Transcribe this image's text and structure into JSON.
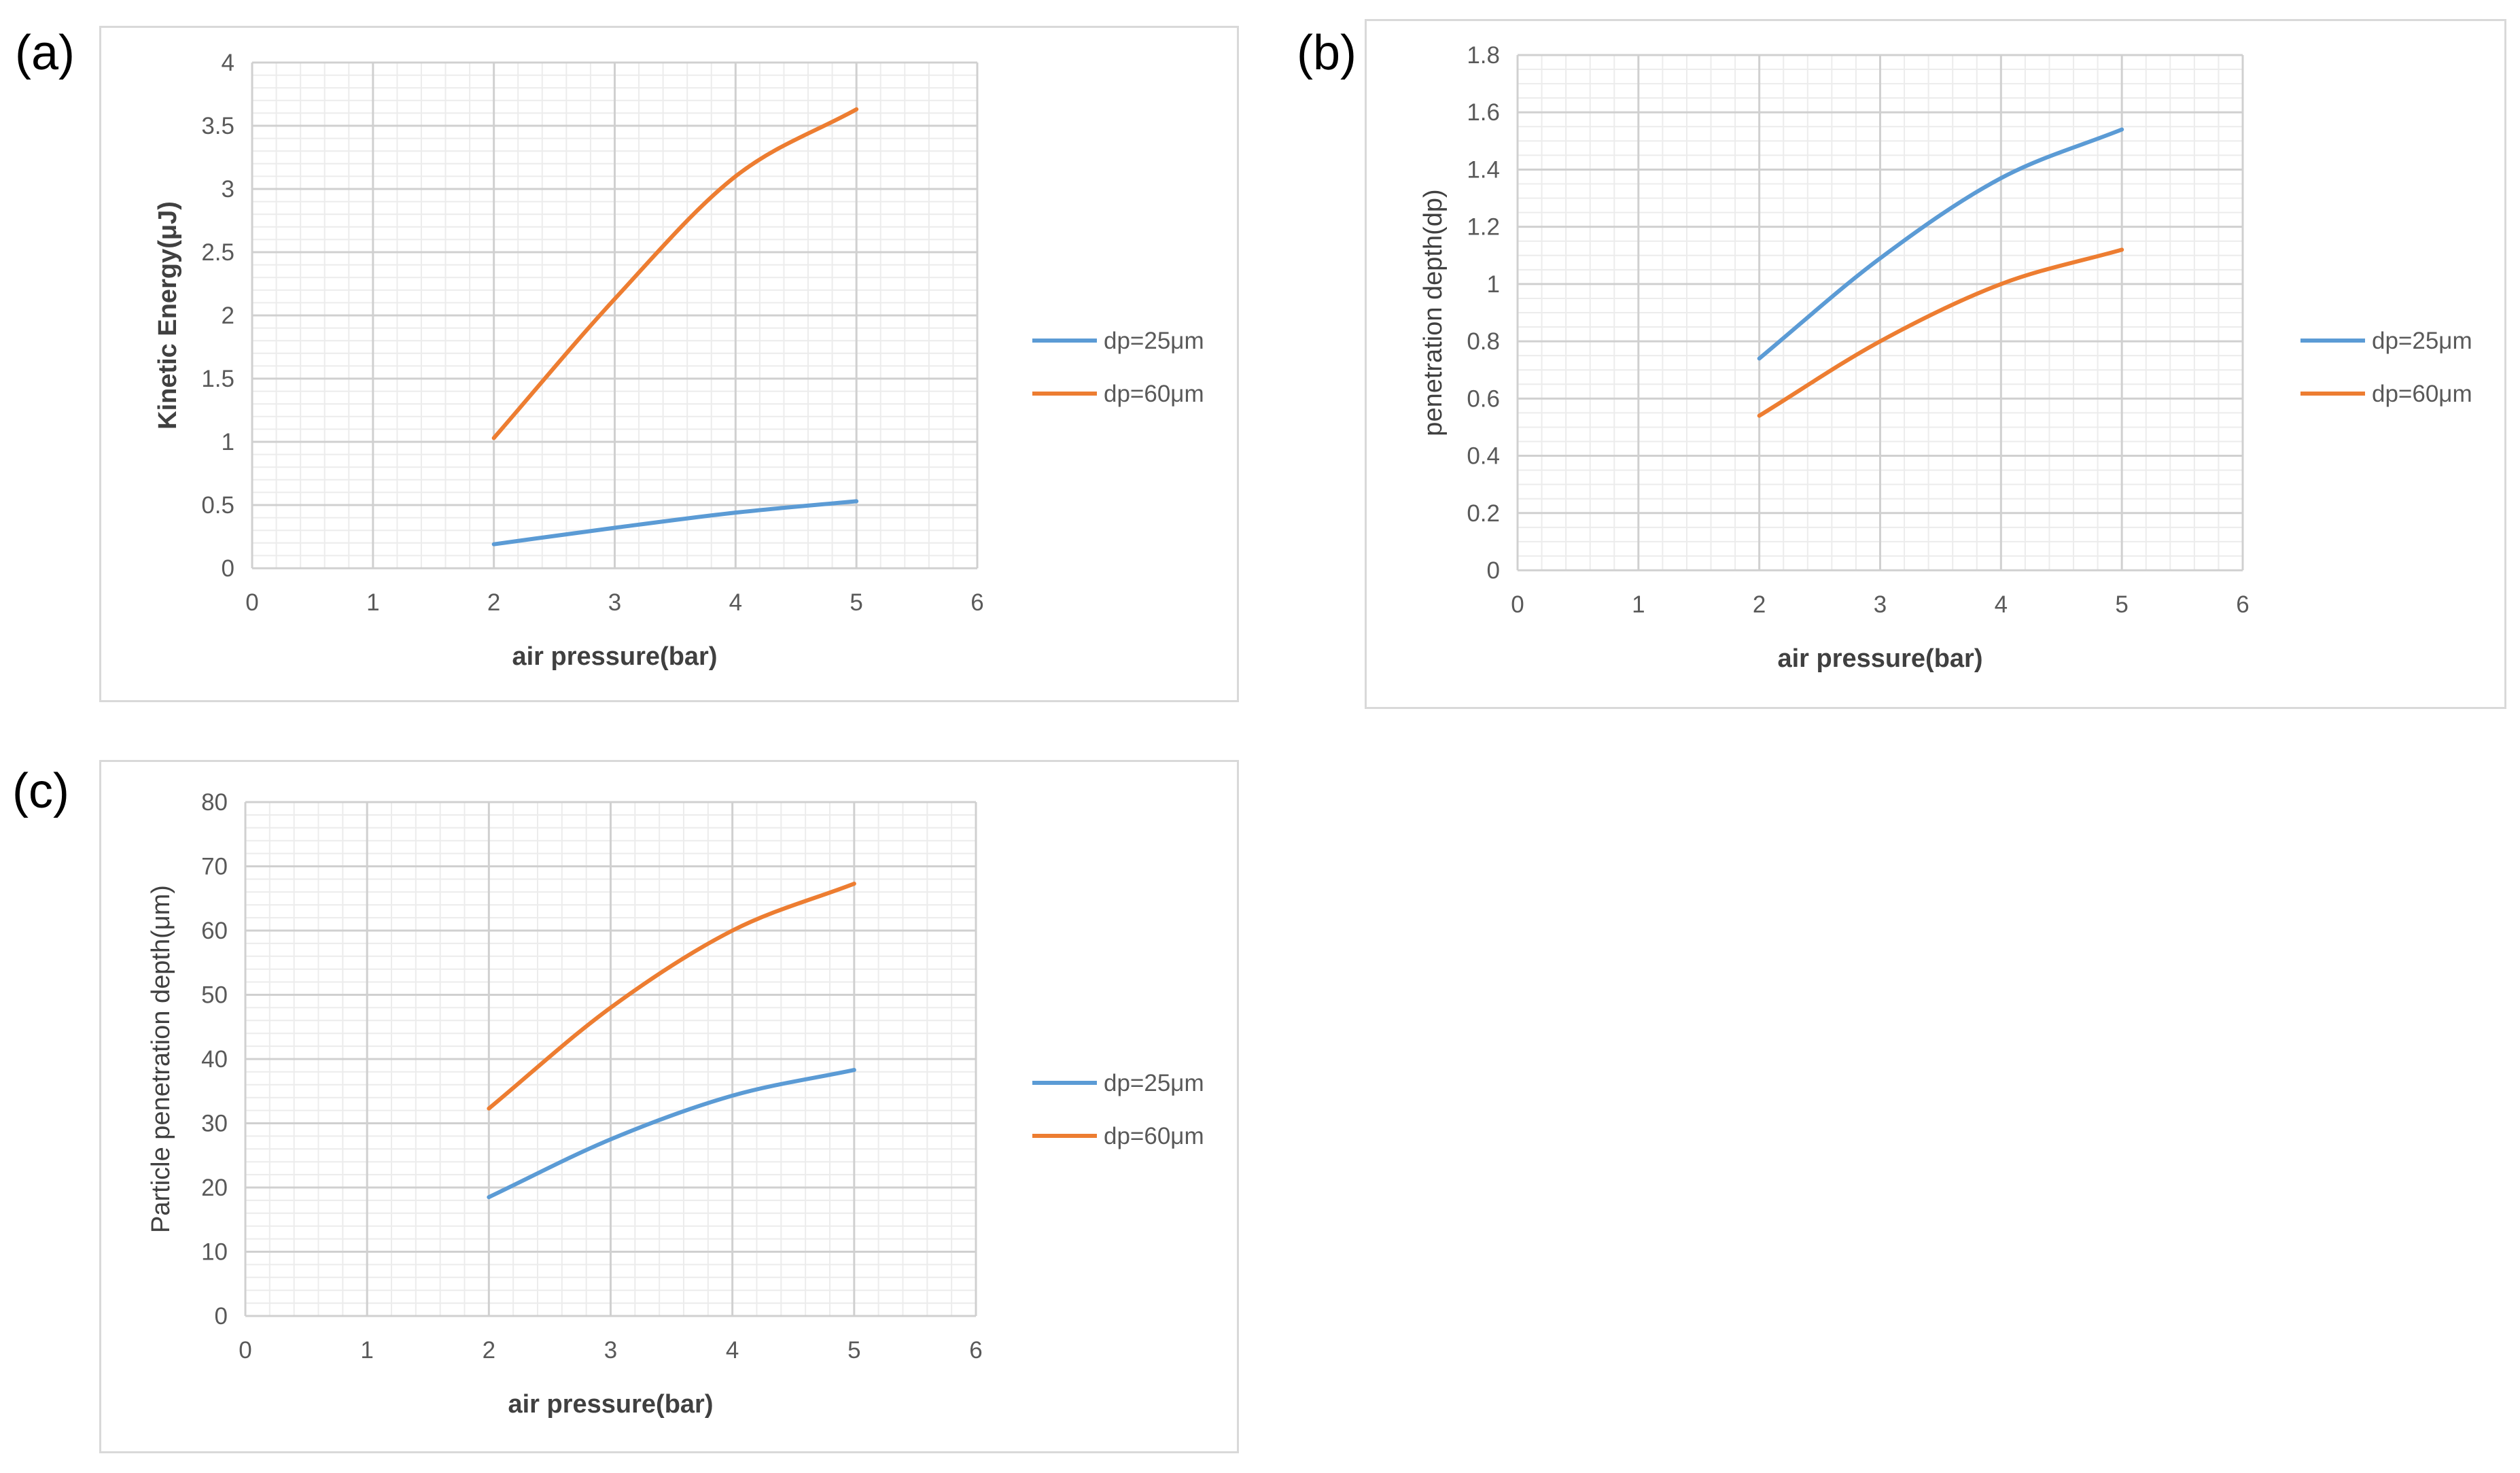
{
  "chart_data": [
    {
      "panel_label": "(a)",
      "type": "line",
      "xlabel": "air pressure(bar)",
      "ylabel": "Kinetic Energy(μJ)",
      "xlim": [
        0,
        6
      ],
      "ylim": [
        0,
        4
      ],
      "x_ticks": [
        0,
        1,
        2,
        3,
        4,
        5,
        6
      ],
      "y_ticks": [
        0,
        0.5,
        1,
        1.5,
        2,
        2.5,
        3,
        3.5,
        4
      ],
      "minor_y": 0.1,
      "minor_x": 0.2,
      "legend_position": "right",
      "series": [
        {
          "name": "dp=25μm",
          "color": "#5b9bd5",
          "x": [
            2,
            3,
            4,
            5
          ],
          "values": [
            0.19,
            0.32,
            0.44,
            0.53
          ]
        },
        {
          "name": "dp=60μm",
          "color": "#ed7d31",
          "x": [
            2,
            3,
            4,
            5
          ],
          "values": [
            1.03,
            2.13,
            3.1,
            3.63
          ]
        }
      ]
    },
    {
      "panel_label": "(b)",
      "type": "line",
      "xlabel": "air pressure(bar)",
      "ylabel": "penetration depth(dp)",
      "xlim": [
        0,
        6
      ],
      "ylim": [
        0,
        1.8
      ],
      "x_ticks": [
        0,
        1,
        2,
        3,
        4,
        5,
        6
      ],
      "y_ticks": [
        0,
        0.2,
        0.4,
        0.6,
        0.8,
        1,
        1.2,
        1.4,
        1.6,
        1.8
      ],
      "minor_y": 0.05,
      "minor_x": 0.2,
      "legend_position": "right",
      "series": [
        {
          "name": "dp=25μm",
          "color": "#5b9bd5",
          "x": [
            2,
            3,
            4,
            5
          ],
          "values": [
            0.74,
            1.09,
            1.37,
            1.54
          ]
        },
        {
          "name": "dp=60μm",
          "color": "#ed7d31",
          "x": [
            2,
            3,
            4,
            5
          ],
          "values": [
            0.54,
            0.8,
            1.0,
            1.12
          ]
        }
      ]
    },
    {
      "panel_label": "(c)",
      "type": "line",
      "xlabel": "air pressure(bar)",
      "ylabel": "Particle penetration depth(μm)",
      "xlim": [
        0,
        6
      ],
      "ylim": [
        0,
        80
      ],
      "x_ticks": [
        0,
        1,
        2,
        3,
        4,
        5,
        6
      ],
      "y_ticks": [
        0,
        10,
        20,
        30,
        40,
        50,
        60,
        70,
        80
      ],
      "minor_y": 2,
      "minor_x": 0.2,
      "legend_position": "right",
      "series": [
        {
          "name": "dp=25μm",
          "color": "#5b9bd5",
          "x": [
            2,
            3,
            4,
            5
          ],
          "values": [
            18.5,
            27.5,
            34.3,
            38.3
          ]
        },
        {
          "name": "dp=60μm",
          "color": "#ed7d31",
          "x": [
            2,
            3,
            4,
            5
          ],
          "values": [
            32.3,
            48,
            60,
            67.3
          ]
        }
      ]
    }
  ]
}
